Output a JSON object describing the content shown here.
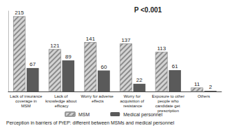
{
  "chart_data": {
    "type": "bar",
    "title": "Perception in barriers of PrEP: different between MSMs and medical personnel",
    "annotation": "P <0.001",
    "categories": [
      "Lack of insurance coverage in MSM",
      "Lack of knowledge about efficacy",
      "Worry for adverse effects",
      "Worry for acquisition of resistance",
      "Exposure to other people who candidate get prescription",
      "Others"
    ],
    "series": [
      {
        "name": "MSM",
        "color": "#d4d4d4",
        "values": [
          215,
          121,
          141,
          137,
          113,
          11
        ]
      },
      {
        "name": "Medical personnel",
        "color": "#5a5a5a",
        "values": [
          67,
          89,
          60,
          22,
          61,
          2
        ]
      }
    ],
    "ylim": [
      0,
      230
    ],
    "data_labels": true,
    "legend": "bottom",
    "tick_labels": "x"
  }
}
